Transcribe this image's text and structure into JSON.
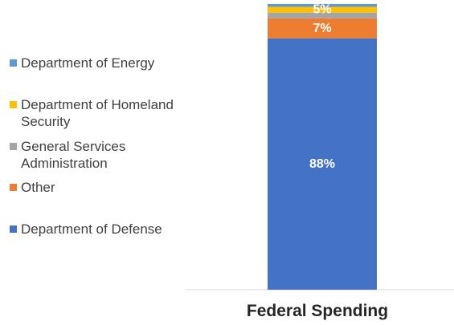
{
  "chart_data": {
    "type": "bar",
    "stacked": true,
    "percent": true,
    "categories": [
      "Federal Spending"
    ],
    "series": [
      {
        "name": "Department of Defense",
        "values": [
          88
        ],
        "color": "#4472C4",
        "label": "88%"
      },
      {
        "name": "Other",
        "values": [
          7
        ],
        "color": "#ED7D31",
        "label": "7%"
      },
      {
        "name": "General Services Administration",
        "values": [
          2
        ],
        "color": "#A5A5A5",
        "label": ""
      },
      {
        "name": "Department of Homeland Security",
        "values": [
          2
        ],
        "color": "#FFC000",
        "label": "5%"
      },
      {
        "name": "Department of Energy",
        "values": [
          1
        ],
        "color": "#5B9BD5",
        "label": ""
      }
    ],
    "legend_order": [
      "Department of Energy",
      "Department of Homeland Security",
      "General Services Administration",
      "Other",
      "Department of Defense"
    ],
    "legend_position": "left",
    "grid": false,
    "ylim": [
      0,
      100
    ]
  }
}
